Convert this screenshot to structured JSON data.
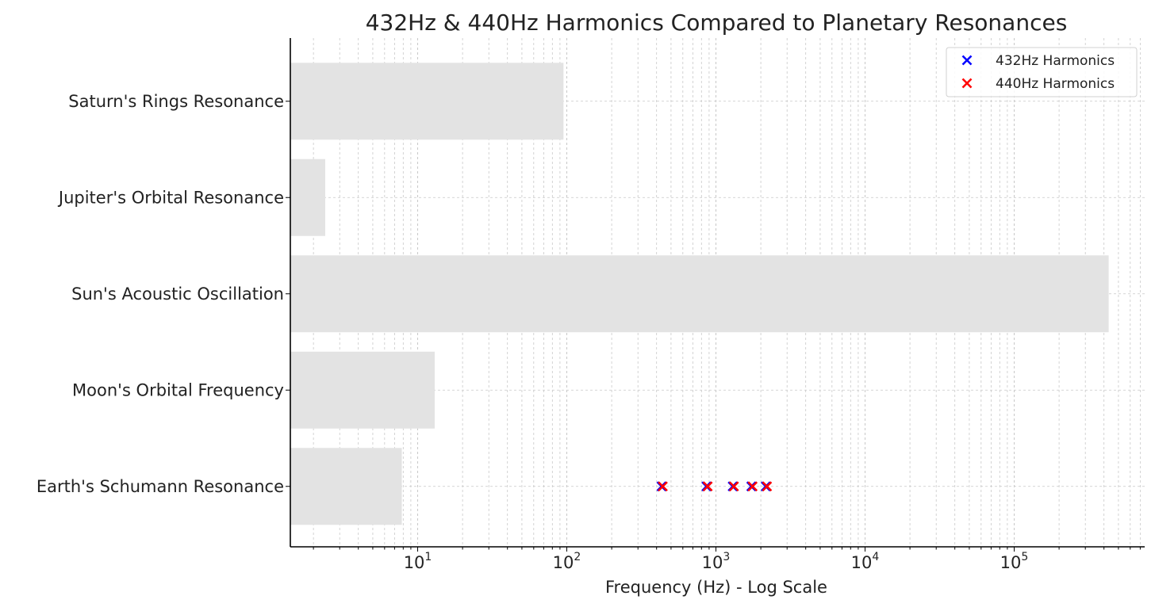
{
  "chart_data": {
    "type": "bar",
    "orientation": "horizontal",
    "title": "432Hz & 440Hz Harmonics Compared to Planetary Resonances",
    "xlabel": "Frequency (Hz) - Log Scale",
    "ylabel": "",
    "xscale": "log",
    "xlim": [
      1.4,
      750000
    ],
    "xticks": [
      {
        "base": "10",
        "exp": "1"
      },
      {
        "base": "10",
        "exp": "2"
      },
      {
        "base": "10",
        "exp": "3"
      },
      {
        "base": "10",
        "exp": "4"
      },
      {
        "base": "10",
        "exp": "5"
      }
    ],
    "categories": [
      "Earth's Schumann Resonance",
      "Moon's Orbital Frequency",
      "Sun's Acoustic Oscillation",
      "Jupiter's Orbital Resonance",
      "Saturn's Rings Resonance"
    ],
    "values": [
      7.83,
      13,
      430000,
      2.4,
      95
    ],
    "bar_color": "#e3e3e3",
    "grid": true,
    "grid_color": "#c8c8c8",
    "legend_position": "top-right",
    "series": [
      {
        "name": "432Hz Harmonics",
        "type": "scatter",
        "marker": "x",
        "color": "#0000ff",
        "category": "Earth's Schumann Resonance",
        "x": [
          432,
          864,
          1296,
          1728,
          2160
        ]
      },
      {
        "name": "440Hz Harmonics",
        "type": "scatter",
        "marker": "x",
        "color": "#ff0000",
        "category": "Earth's Schumann Resonance",
        "x": [
          440,
          880,
          1320,
          1760,
          2200
        ]
      }
    ]
  }
}
